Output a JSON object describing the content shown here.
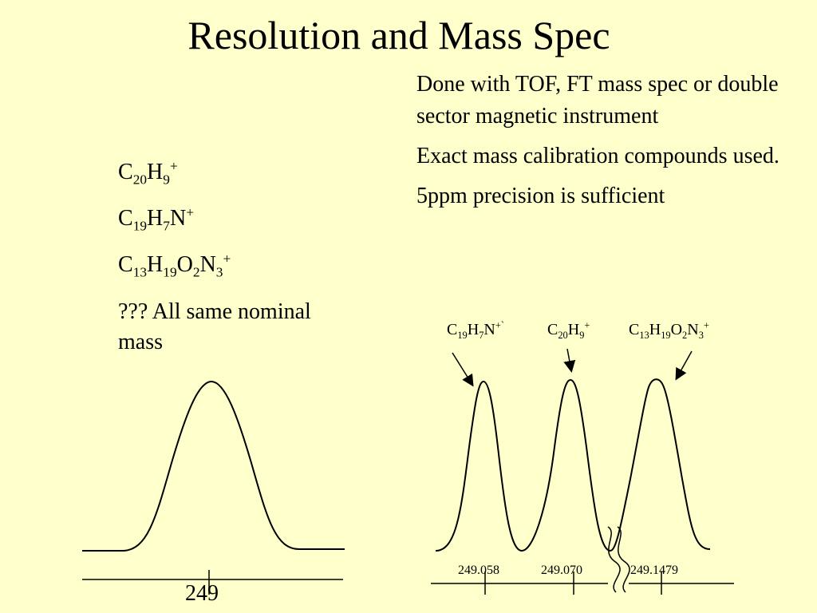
{
  "title": "Resolution and Mass Spec",
  "right_text": [
    "Done with TOF, FT mass spec or double sector magnetic instrument",
    "Exact mass calibration compounds used.",
    "5ppm precision is sufficient"
  ],
  "formulas": [
    {
      "parts": [
        [
          "C",
          ""
        ],
        [
          "20",
          "sub"
        ],
        [
          "H",
          ""
        ],
        [
          "9",
          "sub"
        ],
        [
          "+",
          "sup"
        ]
      ]
    },
    {
      "parts": [
        [
          "C",
          ""
        ],
        [
          "19",
          "sub"
        ],
        [
          "H",
          ""
        ],
        [
          "7",
          "sub"
        ],
        [
          "N",
          ""
        ],
        [
          "+",
          "sup"
        ]
      ]
    },
    {
      "parts": [
        [
          "C",
          ""
        ],
        [
          "13",
          "sub"
        ],
        [
          "H",
          ""
        ],
        [
          "19",
          "sub"
        ],
        [
          "O",
          ""
        ],
        [
          "2",
          "sub"
        ],
        [
          "N",
          ""
        ],
        [
          "3",
          "sub"
        ],
        [
          "+",
          "sup"
        ]
      ]
    }
  ],
  "note": "??? All same nominal mass",
  "low_res": {
    "nominal_label": "249"
  },
  "high_res": {
    "peaks": [
      {
        "label_parts": [
          [
            "C",
            ""
          ],
          [
            "19",
            "sub"
          ],
          [
            "H",
            ""
          ],
          [
            "7",
            "sub"
          ],
          [
            "N",
            ""
          ],
          [
            "+`",
            "sup"
          ]
        ],
        "mass": "249.058"
      },
      {
        "label_parts": [
          [
            "C",
            ""
          ],
          [
            "20",
            "sub"
          ],
          [
            "H",
            ""
          ],
          [
            "9",
            "sub"
          ],
          [
            "+",
            "sup"
          ]
        ],
        "mass": "249.070"
      },
      {
        "label_parts": [
          [
            "C",
            ""
          ],
          [
            "13",
            "sub"
          ],
          [
            "H",
            ""
          ],
          [
            "19",
            "sub"
          ],
          [
            "O",
            ""
          ],
          [
            "2",
            "sub"
          ],
          [
            "N",
            ""
          ],
          [
            "3",
            "sub"
          ],
          [
            "+",
            "sup"
          ]
        ],
        "mass": "249.1479"
      }
    ]
  }
}
